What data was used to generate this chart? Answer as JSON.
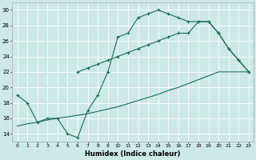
{
  "xlabel": "Humidex (Indice chaleur)",
  "xlim": [
    -0.5,
    23.5
  ],
  "ylim": [
    13,
    31
  ],
  "ytick_values": [
    14,
    16,
    18,
    20,
    22,
    24,
    26,
    28,
    30
  ],
  "bg_color": "#cce9e5",
  "line_color": "#1a6b5e",
  "grid_color": "#ffffff",
  "line1_x": [
    0,
    1,
    2,
    3,
    4,
    5,
    6,
    7,
    8,
    9,
    10,
    11,
    12,
    13,
    14,
    15,
    16,
    17,
    18,
    19,
    20,
    21,
    22,
    23
  ],
  "line1_y": [
    19,
    18,
    15.5,
    16,
    16,
    14,
    13.5,
    17,
    19,
    22,
    26.5,
    27,
    29,
    29.5,
    30,
    29.5,
    29,
    28.5,
    28.5,
    28.5,
    27,
    25,
    23.5,
    22
  ],
  "line2_x": [
    6,
    7,
    8,
    9,
    10,
    11,
    12,
    13,
    14,
    15,
    16,
    17,
    18,
    19,
    20,
    21,
    22,
    23
  ],
  "line2_y": [
    22,
    22.5,
    23,
    23.5,
    24,
    24.5,
    25,
    25.5,
    26,
    26.5,
    27,
    27,
    28.5,
    28.5,
    27,
    25,
    23.5,
    22
  ],
  "line3_x": [
    0,
    1,
    2,
    3,
    4,
    5,
    6,
    7,
    8,
    9,
    10,
    11,
    12,
    13,
    14,
    15,
    16,
    17,
    18,
    19,
    20,
    21,
    22,
    23
  ],
  "line3_y": [
    15.0,
    15.3,
    15.5,
    15.8,
    16.0,
    16.2,
    16.4,
    16.6,
    16.9,
    17.2,
    17.5,
    17.9,
    18.3,
    18.7,
    19.1,
    19.6,
    20.0,
    20.5,
    21.0,
    21.5,
    22.0,
    22.0,
    22.0,
    22.0
  ]
}
